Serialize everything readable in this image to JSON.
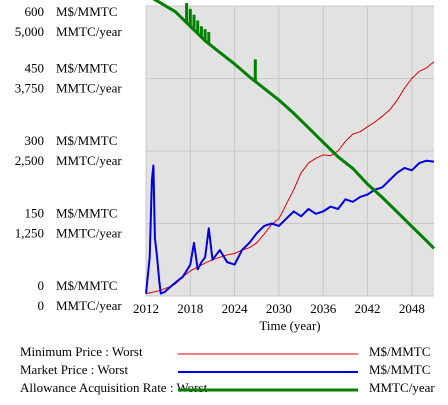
{
  "chart_data": {
    "type": "line",
    "xlabel": "Time (year)",
    "x_ticks": [
      "2012",
      "2018",
      "2024",
      "2030",
      "2036",
      "2042",
      "2048"
    ],
    "x_range": [
      2012,
      2051
    ],
    "grid": true,
    "axes": [
      {
        "unit": "M$/MMTC",
        "range": [
          0,
          600
        ],
        "ticks": [
          "600",
          "450",
          "300",
          "150",
          "0"
        ]
      },
      {
        "unit": "MMTC/year",
        "range": [
          0,
          5000
        ],
        "ticks": [
          "5,000",
          "3,750",
          "2,500",
          "1,250",
          "0"
        ]
      }
    ],
    "series": [
      {
        "name": "Minimum Price : Worst",
        "unit": "M$/MMTC",
        "color": "#e00000",
        "width": "thin",
        "x": [
          2012,
          2013,
          2014,
          2015,
          2016,
          2017,
          2018,
          2019,
          2020,
          2021,
          2022,
          2023,
          2024,
          2025,
          2026,
          2027,
          2028,
          2029,
          2030,
          2031,
          2032,
          2033,
          2034,
          2035,
          2036,
          2037,
          2038,
          2039,
          2040,
          2041,
          2042,
          2043,
          2044,
          2045,
          2046,
          2047,
          2048,
          2049,
          2050,
          2051
        ],
        "y": [
          5,
          8,
          12,
          18,
          25,
          40,
          52,
          60,
          68,
          75,
          80,
          85,
          88,
          95,
          100,
          110,
          128,
          148,
          160,
          190,
          220,
          255,
          275,
          285,
          292,
          290,
          300,
          320,
          335,
          340,
          350,
          360,
          372,
          385,
          405,
          430,
          450,
          465,
          472,
          485
        ]
      },
      {
        "name": "Market Price : Worst",
        "unit": "M$/MMTC",
        "color": "#0000e0",
        "width": "medium",
        "x": [
          2012,
          2012.5,
          2012.8,
          2013,
          2013.2,
          2013.5,
          2013.8,
          2014,
          2014.5,
          2015,
          2016,
          2017,
          2018,
          2018.5,
          2019,
          2019.5,
          2020,
          2020.5,
          2021,
          2022,
          2023,
          2024,
          2025,
          2026,
          2027,
          2028,
          2029,
          2030,
          2031,
          2032,
          2033,
          2034,
          2035,
          2036,
          2037,
          2038,
          2039,
          2040,
          2041,
          2042,
          2043,
          2044,
          2045,
          2046,
          2047,
          2048,
          2049,
          2050,
          2051
        ],
        "y": [
          5,
          80,
          240,
          270,
          120,
          80,
          30,
          5,
          8,
          15,
          28,
          40,
          65,
          110,
          55,
          70,
          80,
          140,
          75,
          95,
          70,
          65,
          95,
          110,
          130,
          145,
          150,
          145,
          160,
          175,
          165,
          180,
          170,
          175,
          185,
          180,
          200,
          195,
          205,
          210,
          220,
          225,
          240,
          255,
          265,
          260,
          275,
          280,
          278
        ]
      },
      {
        "name": "Allowance Acquisition Rate : Worst",
        "unit": "MMTC/year",
        "color": "#008000",
        "width": "thick",
        "x": [
          2012,
          2014,
          2016,
          2018,
          2020,
          2022,
          2024,
          2026,
          2028,
          2030,
          2032,
          2034,
          2036,
          2038,
          2040,
          2042,
          2044,
          2046,
          2048,
          2050,
          2051
        ],
        "y": [
          5200,
          5050,
          4900,
          4650,
          4400,
          4200,
          4000,
          3780,
          3580,
          3380,
          3150,
          2900,
          2650,
          2400,
          2200,
          1930,
          1700,
          1450,
          1200,
          950,
          820
        ],
        "spikes": [
          {
            "x": 2017.5,
            "y": 5050
          },
          {
            "x": 2018.0,
            "y": 4950
          },
          {
            "x": 2018.5,
            "y": 4850
          },
          {
            "x": 2019.0,
            "y": 4750
          },
          {
            "x": 2019.5,
            "y": 4650
          },
          {
            "x": 2020.0,
            "y": 4600
          },
          {
            "x": 2020.5,
            "y": 4550
          },
          {
            "x": 2026.8,
            "y": 4080
          }
        ]
      }
    ]
  }
}
